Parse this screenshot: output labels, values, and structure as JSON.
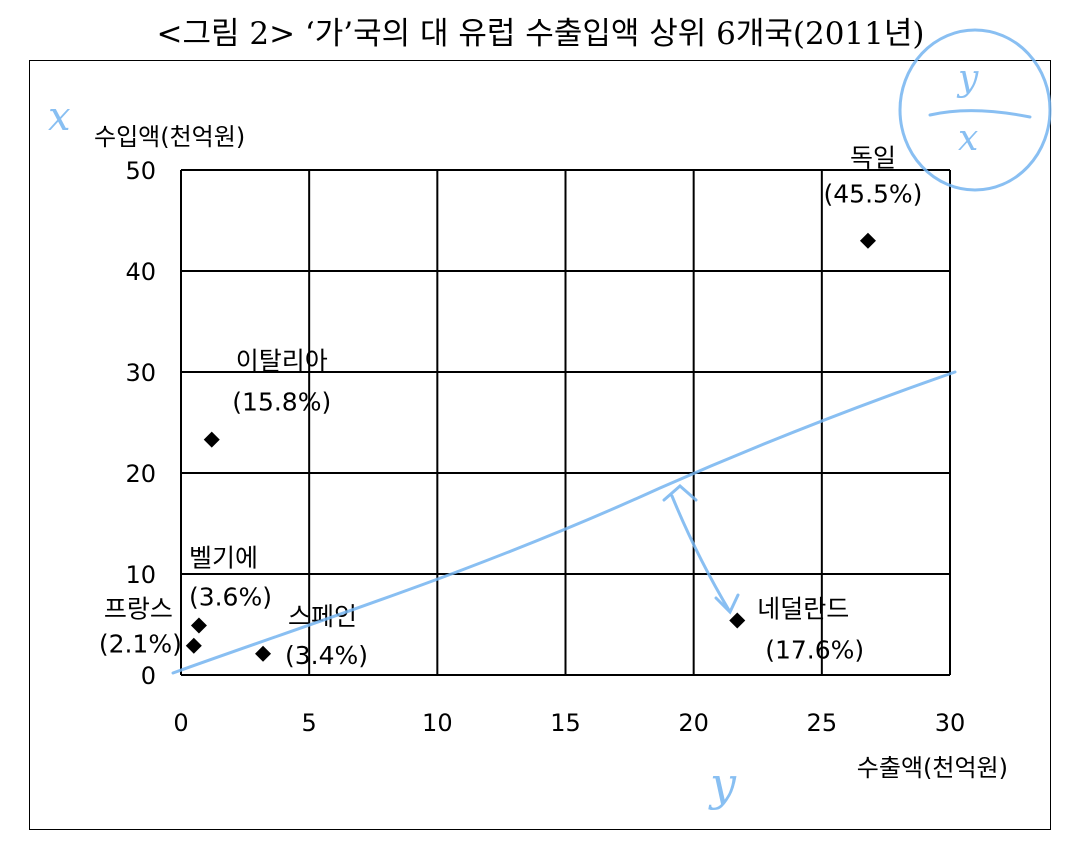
{
  "title": "<그림 2> ‘가’국의 대 유럽 수출입액 상위 6개국(2011년)",
  "chart_data": {
    "type": "scatter",
    "title": "<그림 2> ‘가’국의 대 유럽 수출입액 상위 6개국(2011년)",
    "xlabel": "수출액(천억원)",
    "ylabel": "수입액(천억원)",
    "xlim": [
      0,
      30
    ],
    "ylim": [
      0,
      50
    ],
    "xticks": [
      0,
      5,
      10,
      15,
      20,
      25,
      30
    ],
    "yticks": [
      0,
      10,
      20,
      30,
      40,
      50
    ],
    "grid": true,
    "marker_color": "#000000",
    "points": [
      {
        "name": "독일",
        "share": "(45.5%)",
        "x": 26.8,
        "y": 43.0
      },
      {
        "name": "이탈리아",
        "share": "(15.8%)",
        "x": 1.2,
        "y": 23.3
      },
      {
        "name": "벨기에",
        "share": "(3.6%)",
        "x": 0.7,
        "y": 4.9
      },
      {
        "name": "프랑스",
        "share": "(2.1%)",
        "x": 0.5,
        "y": 2.9
      },
      {
        "name": "스페인",
        "share": "(3.4%)",
        "x": 3.2,
        "y": 2.1
      },
      {
        "name": "네덜란드",
        "share": "(17.6%)",
        "x": 21.7,
        "y": 5.4
      }
    ]
  },
  "annotations": {
    "handwritten_x": "x",
    "handwritten_y": "y",
    "handwritten_circle": "y/x",
    "ink_color": "#74b4f0"
  }
}
